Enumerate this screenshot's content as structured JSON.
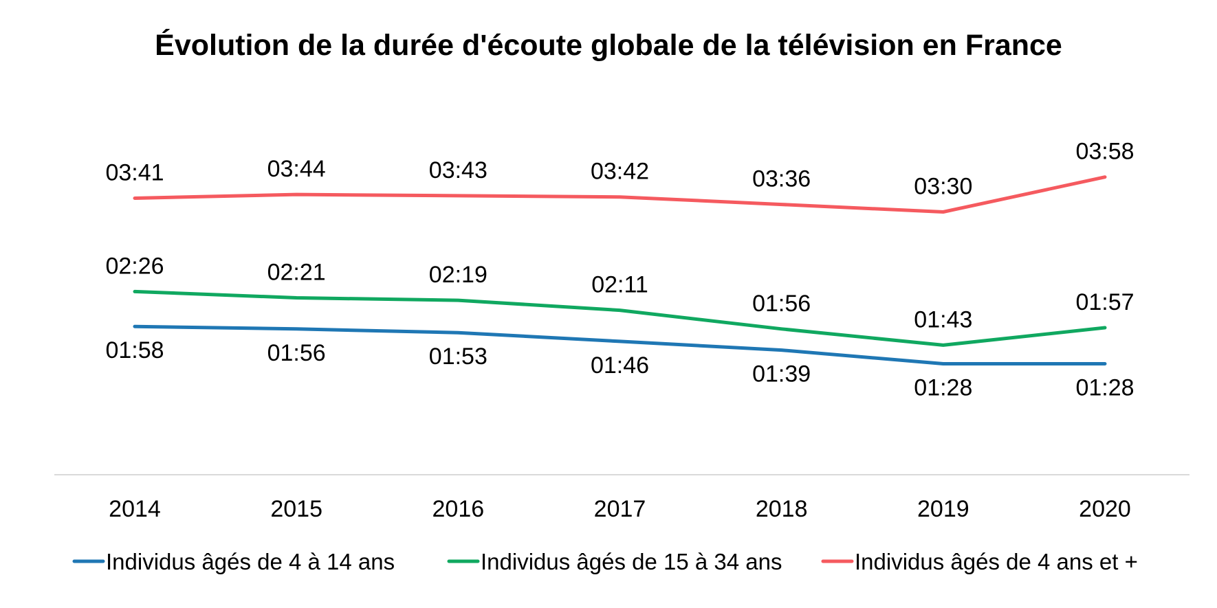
{
  "chart_data": {
    "type": "line",
    "title": "Évolution de la durée d'écoute globale de la télévision en France",
    "xlabel": "",
    "ylabel": "",
    "categories": [
      "2014",
      "2015",
      "2016",
      "2017",
      "2018",
      "2019",
      "2020"
    ],
    "y_unit": "minutes (displayed as hh:mm)",
    "ylim": [
      0,
      280
    ],
    "grid": false,
    "legend_position": "bottom",
    "series": [
      {
        "name": "Individus âgés de 4 à 14 ans",
        "color": "#1f77b4",
        "values": [
          118,
          116,
          113,
          106,
          99,
          88,
          88
        ],
        "labels": [
          "01:58",
          "01:56",
          "01:53",
          "01:46",
          "01:39",
          "01:28",
          "01:28"
        ],
        "label_position": "below"
      },
      {
        "name": "Individus âgés de 15 à 34 ans",
        "color": "#10a860",
        "values": [
          146,
          141,
          139,
          131,
          116,
          103,
          117
        ],
        "labels": [
          "02:26",
          "02:21",
          "02:19",
          "02:11",
          "01:56",
          "01:43",
          "01:57"
        ],
        "label_position": "above"
      },
      {
        "name": "Individus âgés de 4 ans et +",
        "color": "#f55a5f",
        "values": [
          221,
          224,
          223,
          222,
          216,
          210,
          238
        ],
        "labels": [
          "03:41",
          "03:44",
          "03:43",
          "03:42",
          "03:36",
          "03:30",
          "03:58"
        ],
        "label_position": "above"
      }
    ]
  },
  "colors": {
    "axis": "#d9d9d9",
    "text": "#000000",
    "background": "#ffffff"
  }
}
